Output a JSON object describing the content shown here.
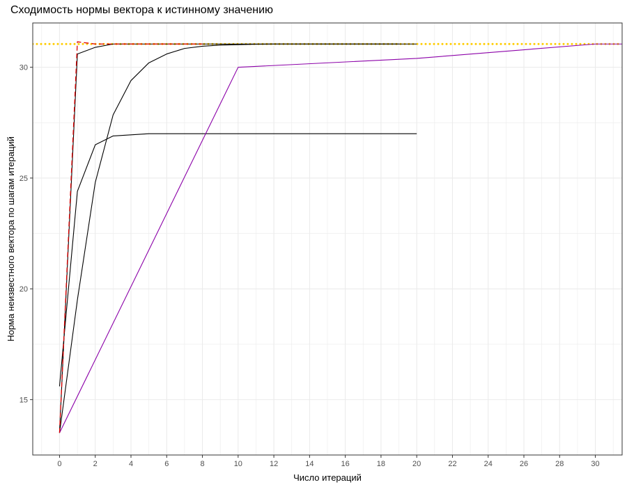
{
  "chart_data": {
    "type": "line",
    "title": "Сходимость нормы вектора к истинному значению",
    "xlabel": "Число итераций",
    "ylabel": "Норма неизвестного вектора по шагам итераций",
    "xlim": [
      -1.5,
      31.5
    ],
    "ylim": [
      12.5,
      32.0
    ],
    "x_ticks": [
      0,
      2,
      4,
      6,
      8,
      10,
      12,
      14,
      16,
      18,
      20,
      22,
      24,
      26,
      28,
      30
    ],
    "y_ticks": [
      15,
      20,
      25,
      30
    ],
    "grid": true,
    "legend": "none",
    "colors": {
      "black": "#000000",
      "purple": "#8b00a8",
      "red": "#dd0000",
      "gold": "#ffcc00",
      "grid": "#ebebeb",
      "panel_border": "#333333"
    },
    "reference_line": {
      "y": 31.05,
      "style": "dotted",
      "color": "#ffcc00"
    },
    "series": [
      {
        "color": "#000000",
        "style": "solid",
        "x": [
          0,
          1,
          2,
          3,
          4,
          5,
          10,
          20
        ],
        "y": [
          15.6,
          24.4,
          26.5,
          26.9,
          26.95,
          27.0,
          27.0,
          27.0
        ]
      },
      {
        "color": "#000000",
        "style": "solid",
        "x": [
          0,
          1,
          2,
          3,
          4,
          5,
          6,
          7,
          8,
          9,
          10,
          11,
          12,
          15,
          19
        ],
        "y": [
          13.5,
          19.5,
          24.8,
          27.85,
          29.4,
          30.2,
          30.6,
          30.85,
          30.95,
          31.0,
          31.02,
          31.04,
          31.05,
          31.05,
          31.05
        ]
      },
      {
        "color": "#000000",
        "style": "solid",
        "x": [
          0,
          1,
          2,
          3,
          4,
          5,
          8,
          10,
          15,
          20
        ],
        "y": [
          13.5,
          30.6,
          30.9,
          31.05,
          31.05,
          31.05,
          31.05,
          31.05,
          31.05,
          31.05
        ]
      },
      {
        "color": "#8b00a8",
        "style": "solid",
        "x": [
          0,
          10,
          20,
          30,
          31.5
        ],
        "y": [
          13.5,
          30.0,
          30.4,
          31.05,
          31.05
        ]
      },
      {
        "color": "#dd0000",
        "style": "dashed",
        "x": [
          0,
          1,
          2,
          3,
          8
        ],
        "y": [
          13.5,
          31.15,
          31.05,
          31.05,
          31.05
        ]
      }
    ]
  }
}
